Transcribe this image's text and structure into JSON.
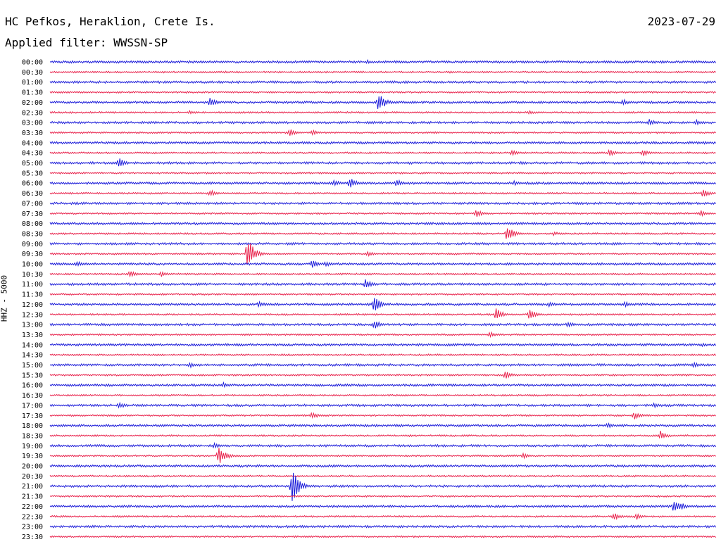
{
  "header": {
    "station": "HC Pefkos, Heraklion, Crete Is.",
    "date": "2023-07-29",
    "filter": "Applied filter: WWSSN-SP"
  },
  "chart_data": {
    "type": "line",
    "title": "HC Pefkos, Heraklion, Crete Is.",
    "ylabel": "HHZ - 5000",
    "trace_colors": [
      "#1a1ad9",
      "#e8204a"
    ],
    "tick_labels": [
      "00:00",
      "00:30",
      "01:00",
      "01:30",
      "02:00",
      "02:30",
      "03:00",
      "03:30",
      "04:00",
      "04:30",
      "05:00",
      "05:30",
      "06:00",
      "06:30",
      "07:00",
      "07:30",
      "08:00",
      "08:30",
      "09:00",
      "09:30",
      "10:00",
      "10:30",
      "11:00",
      "11:30",
      "12:00",
      "12:30",
      "13:00",
      "13:30",
      "14:00",
      "14:30",
      "15:00",
      "15:30",
      "16:00",
      "16:30",
      "17:00",
      "17:30",
      "18:00",
      "18:30",
      "19:00",
      "19:30",
      "20:00",
      "20:30",
      "21:00",
      "21:30",
      "22:00",
      "22:30",
      "23:00",
      "23:30"
    ],
    "x_range_minutes": [
      0,
      30
    ],
    "events": [
      {
        "row": "00:00",
        "minute": 14.3,
        "amp": 3
      },
      {
        "row": "00:00",
        "minute": 29.0,
        "amp": 2
      },
      {
        "row": "00:30",
        "minute": 18.0,
        "amp": 2
      },
      {
        "row": "01:00",
        "minute": 3.5,
        "amp": 2
      },
      {
        "row": "02:00",
        "minute": 7.2,
        "amp": 7
      },
      {
        "row": "02:00",
        "minute": 14.8,
        "amp": 15
      },
      {
        "row": "02:00",
        "minute": 25.8,
        "amp": 5
      },
      {
        "row": "02:30",
        "minute": 6.3,
        "amp": 3
      },
      {
        "row": "02:30",
        "minute": 21.6,
        "amp": 3
      },
      {
        "row": "03:00",
        "minute": 27.0,
        "amp": 5
      },
      {
        "row": "03:00",
        "minute": 29.1,
        "amp": 4
      },
      {
        "row": "03:30",
        "minute": 10.8,
        "amp": 6
      },
      {
        "row": "03:30",
        "minute": 11.8,
        "amp": 4
      },
      {
        "row": "04:00",
        "minute": 29.5,
        "amp": 3
      },
      {
        "row": "04:30",
        "minute": 20.8,
        "amp": 5
      },
      {
        "row": "04:30",
        "minute": 25.2,
        "amp": 5
      },
      {
        "row": "04:30",
        "minute": 26.7,
        "amp": 5
      },
      {
        "row": "05:00",
        "minute": 3.1,
        "amp": 8
      },
      {
        "row": "05:00",
        "minute": 21.2,
        "amp": 3
      },
      {
        "row": "06:00",
        "minute": 12.8,
        "amp": 5
      },
      {
        "row": "06:00",
        "minute": 13.5,
        "amp": 8
      },
      {
        "row": "06:00",
        "minute": 15.6,
        "amp": 6
      },
      {
        "row": "06:00",
        "minute": 20.9,
        "amp": 4
      },
      {
        "row": "06:30",
        "minute": 7.2,
        "amp": 5
      },
      {
        "row": "06:30",
        "minute": 29.4,
        "amp": 6
      },
      {
        "row": "07:30",
        "minute": 19.2,
        "amp": 6
      },
      {
        "row": "07:30",
        "minute": 29.3,
        "amp": 5
      },
      {
        "row": "08:30",
        "minute": 20.6,
        "amp": 12
      },
      {
        "row": "08:30",
        "minute": 22.7,
        "amp": 3
      },
      {
        "row": "09:30",
        "minute": 8.9,
        "amp": 24
      },
      {
        "row": "09:30",
        "minute": 14.3,
        "amp": 4
      },
      {
        "row": "10:00",
        "minute": 1.2,
        "amp": 5
      },
      {
        "row": "10:00",
        "minute": 11.8,
        "amp": 6
      },
      {
        "row": "10:00",
        "minute": 12.4,
        "amp": 4
      },
      {
        "row": "10:30",
        "minute": 3.6,
        "amp": 5
      },
      {
        "row": "10:30",
        "minute": 5.0,
        "amp": 4
      },
      {
        "row": "11:00",
        "minute": 14.2,
        "amp": 7
      },
      {
        "row": "12:00",
        "minute": 9.4,
        "amp": 5
      },
      {
        "row": "12:00",
        "minute": 14.6,
        "amp": 12
      },
      {
        "row": "12:00",
        "minute": 22.5,
        "amp": 4
      },
      {
        "row": "12:00",
        "minute": 25.9,
        "amp": 4
      },
      {
        "row": "12:30",
        "minute": 20.1,
        "amp": 9
      },
      {
        "row": "12:30",
        "minute": 21.6,
        "amp": 8
      },
      {
        "row": "13:00",
        "minute": 14.6,
        "amp": 7
      },
      {
        "row": "13:00",
        "minute": 23.3,
        "amp": 5
      },
      {
        "row": "13:30",
        "minute": 19.8,
        "amp": 5
      },
      {
        "row": "14:00",
        "minute": 29.4,
        "amp": 3
      },
      {
        "row": "15:00",
        "minute": 6.3,
        "amp": 4
      },
      {
        "row": "15:00",
        "minute": 29.0,
        "amp": 4
      },
      {
        "row": "15:30",
        "minute": 20.5,
        "amp": 6
      },
      {
        "row": "16:00",
        "minute": 7.8,
        "amp": 4
      },
      {
        "row": "17:00",
        "minute": 3.1,
        "amp": 5
      },
      {
        "row": "17:00",
        "minute": 27.2,
        "amp": 4
      },
      {
        "row": "17:30",
        "minute": 11.8,
        "amp": 5
      },
      {
        "row": "17:30",
        "minute": 26.3,
        "amp": 6
      },
      {
        "row": "18:00",
        "minute": 25.1,
        "amp": 4
      },
      {
        "row": "18:30",
        "minute": 27.5,
        "amp": 7
      },
      {
        "row": "19:00",
        "minute": 7.4,
        "amp": 4
      },
      {
        "row": "19:30",
        "minute": 7.6,
        "amp": 14
      },
      {
        "row": "19:30",
        "minute": 21.3,
        "amp": 4
      },
      {
        "row": "21:00",
        "minute": 10.9,
        "amp": 26
      },
      {
        "row": "22:00",
        "minute": 28.1,
        "amp": 9
      },
      {
        "row": "22:00",
        "minute": 28.4,
        "amp": 6
      },
      {
        "row": "22:30",
        "minute": 25.4,
        "amp": 6
      },
      {
        "row": "22:30",
        "minute": 26.4,
        "amp": 5
      }
    ]
  }
}
